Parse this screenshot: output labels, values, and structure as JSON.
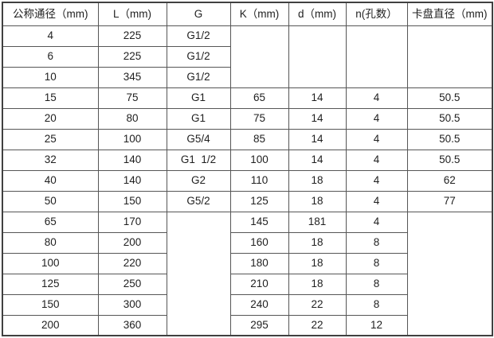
{
  "header": {
    "nominal_diameter": "公称通径（mm)",
    "l": "L（mm)",
    "g": "G",
    "k": "K（mm)",
    "d": "d（mm)",
    "n": "n(孔数）",
    "chuck_diameter": "卡盘直径（mm)"
  },
  "rows": [
    {
      "dn": "4",
      "l": "225",
      "g": "G1/2"
    },
    {
      "dn": "6",
      "l": "225",
      "g": "G1/2"
    },
    {
      "dn": "10",
      "l": "345",
      "g": "G1/2"
    },
    {
      "dn": "15",
      "l": "75",
      "g": "G1",
      "k": "65",
      "d": "14",
      "n": "4",
      "chuck": "50.5"
    },
    {
      "dn": "20",
      "l": "80",
      "g": "G1",
      "k": "75",
      "d": "14",
      "n": "4",
      "chuck": "50.5"
    },
    {
      "dn": "25",
      "l": "100",
      "g": "G5/4",
      "k": "85",
      "d": "14",
      "n": "4",
      "chuck": "50.5"
    },
    {
      "dn": "32",
      "l": "140",
      "g": "G1  1/2",
      "k": "100",
      "d": "14",
      "n": "4",
      "chuck": "50.5"
    },
    {
      "dn": "40",
      "l": "140",
      "g": "G2",
      "k": "110",
      "d": "18",
      "n": "4",
      "chuck": "62"
    },
    {
      "dn": "50",
      "l": "150",
      "g": "G5/2",
      "k": "125",
      "d": "18",
      "n": "4",
      "chuck": "77"
    },
    {
      "dn": "65",
      "l": "170",
      "k": "145",
      "d": "181",
      "n": "4"
    },
    {
      "dn": "80",
      "l": "200",
      "k": "160",
      "d": "18",
      "n": "8"
    },
    {
      "dn": "100",
      "l": "220",
      "k": "180",
      "d": "18",
      "n": "8"
    },
    {
      "dn": "125",
      "l": "250",
      "k": "210",
      "d": "18",
      "n": "8"
    },
    {
      "dn": "150",
      "l": "300",
      "k": "240",
      "d": "22",
      "n": "8"
    },
    {
      "dn": "200",
      "l": "360",
      "k": "295",
      "d": "22",
      "n": "12"
    }
  ]
}
